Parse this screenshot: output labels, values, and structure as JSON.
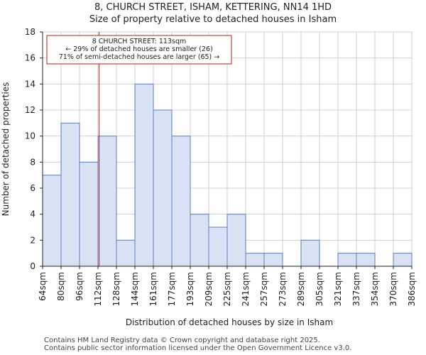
{
  "chart_data": {
    "type": "bar",
    "title": "8, CHURCH STREET, ISHAM, KETTERING, NN14 1HD",
    "subtitle": "Size of property relative to detached houses in Isham",
    "xlabel": "Distribution of detached houses by size in Isham",
    "ylabel": "Number of detached properties",
    "ylim": [
      0,
      18
    ],
    "yticks": [
      0,
      2,
      4,
      6,
      8,
      10,
      12,
      14,
      16,
      18
    ],
    "bin_edges": [
      64,
      80,
      96,
      112,
      128,
      144,
      161,
      177,
      193,
      209,
      225,
      241,
      257,
      273,
      289,
      305,
      321,
      337,
      354,
      370,
      386
    ],
    "tick_labels": [
      "64sqm",
      "80sqm",
      "96sqm",
      "112sqm",
      "128sqm",
      "144sqm",
      "161sqm",
      "177sqm",
      "193sqm",
      "209sqm",
      "225sqm",
      "241sqm",
      "257sqm",
      "273sqm",
      "289sqm",
      "305sqm",
      "321sqm",
      "337sqm",
      "354sqm",
      "370sqm",
      "386sqm"
    ],
    "values": [
      7,
      11,
      8,
      10,
      2,
      14,
      12,
      10,
      4,
      3,
      4,
      1,
      1,
      0,
      2,
      0,
      1,
      1,
      0,
      1
    ],
    "bar_color": "#d8e2f4",
    "bar_edge_color": "#5b7fc0",
    "marker": {
      "value": 113,
      "color": "#b22222",
      "annotation": [
        "8 CHURCH STREET: 113sqm",
        "← 29% of detached houses are smaller (26)",
        "71% of semi-detached houses are larger (65) →"
      ]
    },
    "grid": true
  },
  "footer": {
    "line1": "Contains HM Land Registry data © Crown copyright and database right 2025.",
    "line2": "Contains public sector information licensed under the Open Government Licence v3.0."
  }
}
